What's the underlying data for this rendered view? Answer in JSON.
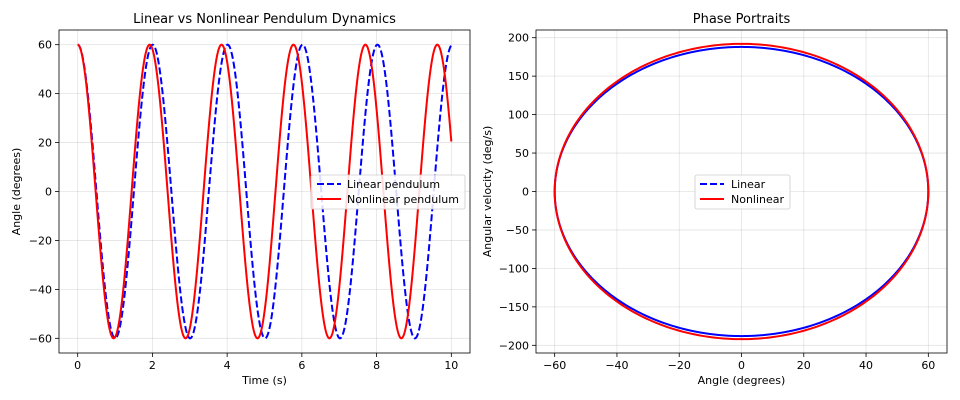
{
  "chart_data": [
    {
      "type": "line",
      "title": "Linear vs Nonlinear Pendulum Dynamics",
      "xlabel": "Time (s)",
      "ylabel": "Angle (degrees)",
      "xlim": [
        -0.5,
        10.5
      ],
      "ylim": [
        -66,
        66
      ],
      "xticks": [
        0,
        2,
        4,
        6,
        8,
        10
      ],
      "xtick_labels": [
        "0",
        "2",
        "4",
        "6",
        "8",
        "10"
      ],
      "yticks": [
        -60,
        -40,
        -20,
        0,
        20,
        40,
        60
      ],
      "ytick_labels": [
        "−60",
        "−40",
        "−20",
        "0",
        "20",
        "40",
        "60"
      ],
      "grid": true,
      "legend_position": "center-right",
      "series": [
        {
          "name": "Linear pendulum",
          "color": "#0000ff",
          "style": "dashed",
          "amplitude": 60,
          "period": 2.006,
          "t_end": 10
        },
        {
          "name": "Nonlinear pendulum",
          "color": "#ff0000",
          "style": "solid",
          "amplitude": 60,
          "period": 1.925,
          "t_end": 10
        }
      ]
    },
    {
      "type": "line",
      "title": "Phase Portraits",
      "xlabel": "Angle (degrees)",
      "ylabel": "Angular velocity (deg/s)",
      "xlim": [
        -66,
        66
      ],
      "ylim": [
        -210,
        210
      ],
      "xticks": [
        -60,
        -40,
        -20,
        0,
        20,
        40,
        60
      ],
      "xtick_labels": [
        "−60",
        "−40",
        "−20",
        "0",
        "20",
        "40",
        "60"
      ],
      "yticks": [
        -200,
        -150,
        -100,
        -50,
        0,
        50,
        100,
        150,
        200
      ],
      "ytick_labels": [
        "−200",
        "−150",
        "−100",
        "−50",
        "0",
        "50",
        "100",
        "150",
        "200"
      ],
      "grid": true,
      "legend_position": "center",
      "series": [
        {
          "name": "Linear",
          "color": "#0000ff",
          "style": "solid",
          "angle_amplitude": 60,
          "velocity_amplitude": 188
        },
        {
          "name": "Nonlinear",
          "color": "#ff0000",
          "style": "solid",
          "angle_amplitude": 60,
          "velocity_amplitude": 192
        }
      ]
    }
  ]
}
